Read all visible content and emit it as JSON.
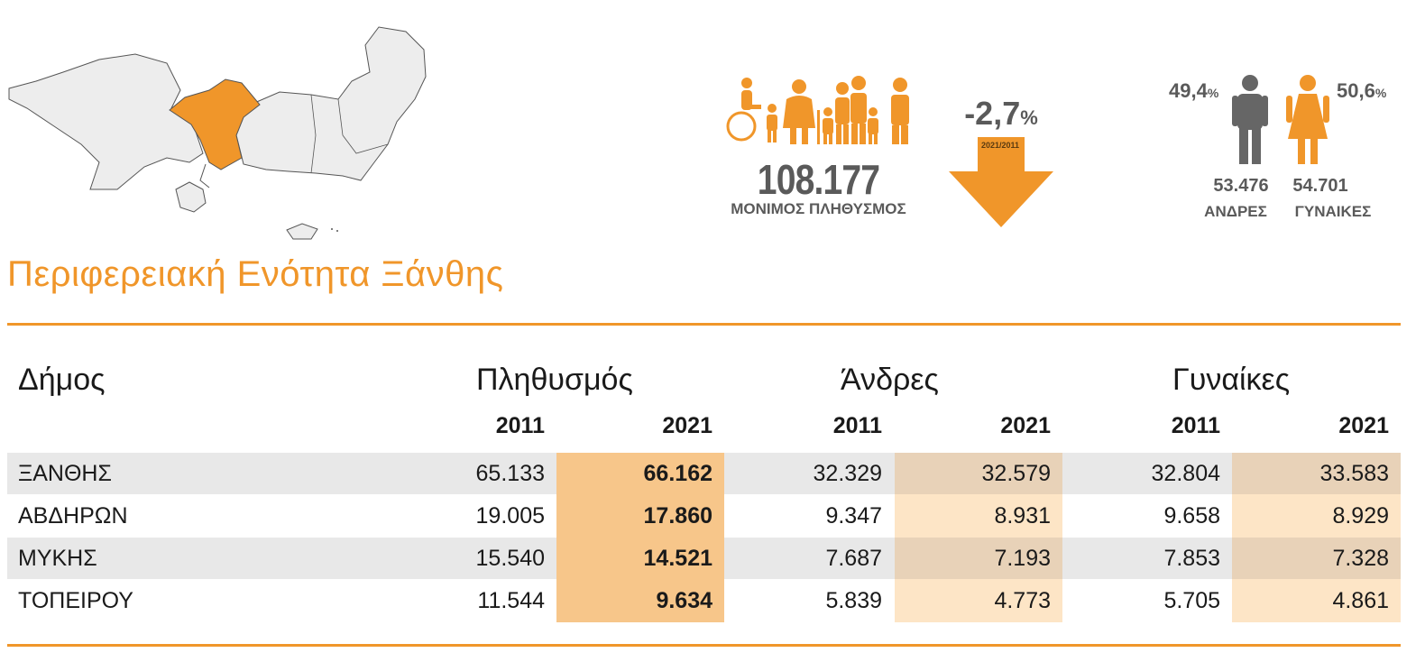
{
  "summary": {
    "population": "108.177",
    "population_label": "ΜΟΝΙΜΟΣ ΠΛΗΘΥΣΜΟΣ",
    "change": "-2,7",
    "change_unit": "%",
    "change_period": "2021/2011",
    "male_pct": "49,4",
    "female_pct": "50,6",
    "pct_unit": "%",
    "male_count": "53.476",
    "female_count": "54.701",
    "male_label": "ΑΝΔΡΕΣ",
    "female_label": "ΓΥΝΑΙΚΕΣ"
  },
  "title": "Περιφερειακή Ενότητα Ξάνθης",
  "table": {
    "headers": {
      "municipality": "Δήμος",
      "population": "Πληθυσμός",
      "men": "Άνδρες",
      "women": "Γυναίκες"
    },
    "years": [
      "2011",
      "2021",
      "2011",
      "2021",
      "2011",
      "2021"
    ],
    "rows": [
      {
        "name": "ΞΑΝΘΗΣ",
        "pop2011": "65.133",
        "pop2021": "66.162",
        "men2011": "32.329",
        "men2021": "32.579",
        "women2011": "32.804",
        "women2021": "33.583"
      },
      {
        "name": "ΑΒΔΗΡΩΝ",
        "pop2011": "19.005",
        "pop2021": "17.860",
        "men2011": "9.347",
        "men2021": "8.931",
        "women2011": "9.658",
        "women2021": "8.929"
      },
      {
        "name": "ΜΥΚΗΣ",
        "pop2011": "15.540",
        "pop2021": "14.521",
        "men2011": "7.687",
        "men2021": "7.193",
        "women2011": "7.853",
        "women2021": "7.328"
      },
      {
        "name": "ΤΟΠΕΙΡΟΥ",
        "pop2011": "11.544",
        "pop2021": "9.634",
        "men2011": "5.839",
        "men2021": "4.773",
        "women2011": "5.705",
        "women2021": "4.861"
      }
    ]
  },
  "colors": {
    "accent": "#f0962a",
    "highlight_strong": "#f7c68a",
    "highlight_light": "#fde5c6",
    "row_shade": "#e8e8e8",
    "text_gray": "#5a5a5a"
  }
}
